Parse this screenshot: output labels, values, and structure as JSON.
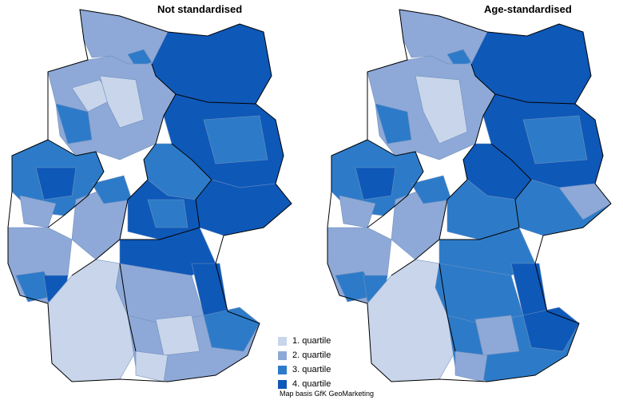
{
  "maps": [
    {
      "title": "Not standardised"
    },
    {
      "title": "Age-standardised"
    }
  ],
  "legend": [
    {
      "label": "1. quartile",
      "color": "#c9d5ea"
    },
    {
      "label": "2. quartile",
      "color": "#8ea9d7"
    },
    {
      "label": "3. quartile",
      "color": "#2d7bc8"
    },
    {
      "label": "4. quartile",
      "color": "#0e58b8"
    }
  ],
  "credit": "Map basis GfK GeoMarketing"
}
